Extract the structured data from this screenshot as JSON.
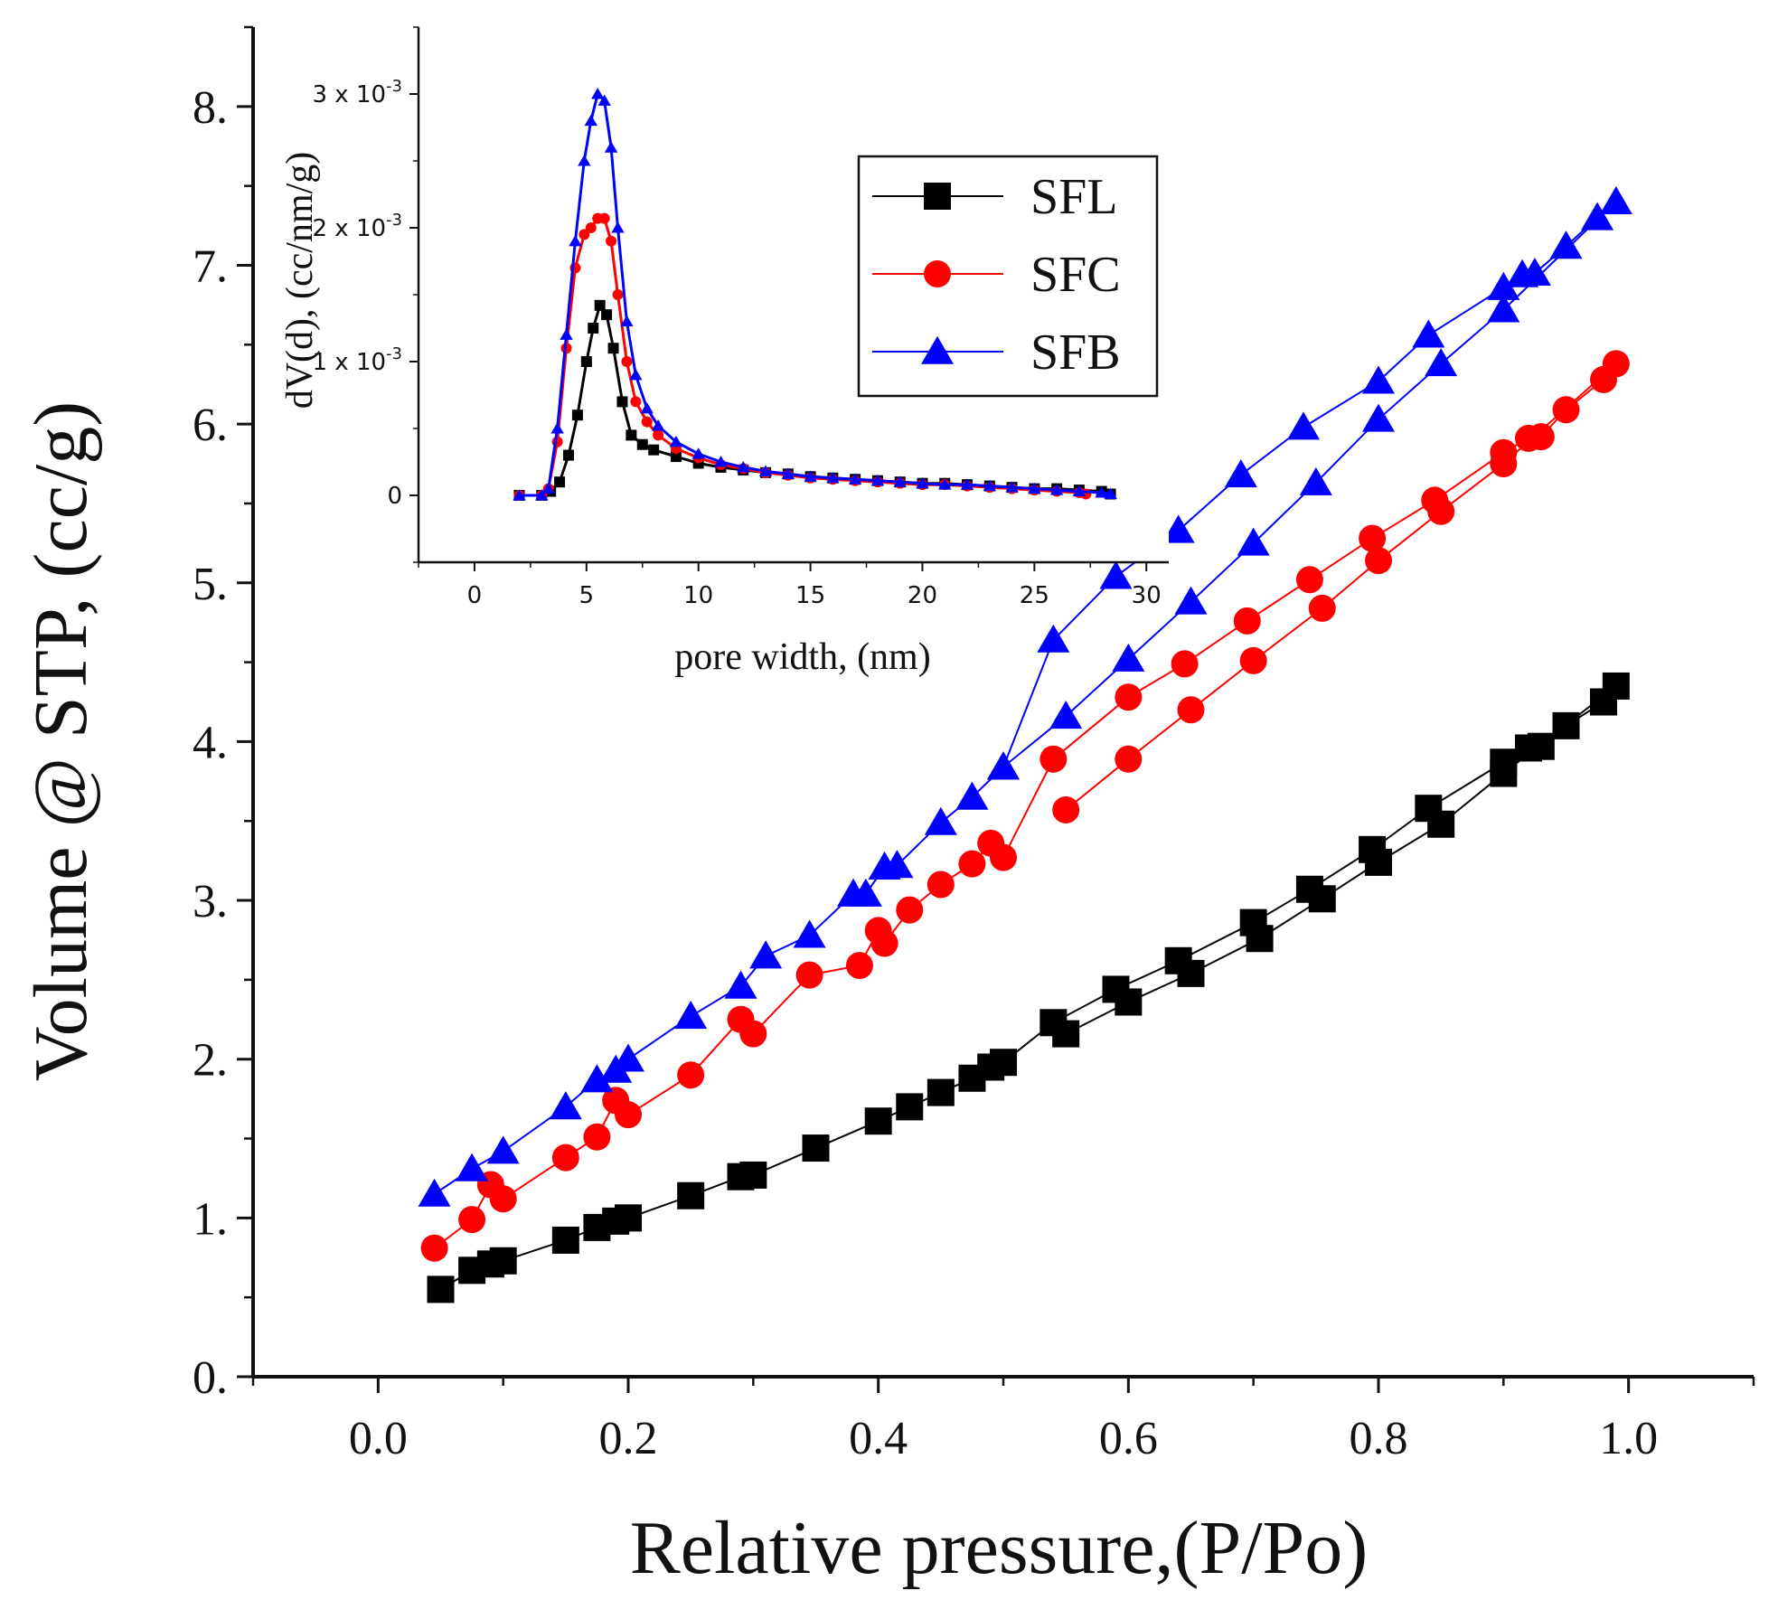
{
  "chart_data": [
    {
      "type": "line",
      "name": "main-isotherm",
      "xlabel": "Relative pressure,(P/Po)",
      "ylabel": "Volume @ STP, (cc/g)",
      "xlim": [
        -0.1,
        1.1
      ],
      "ylim": [
        0,
        8.5
      ],
      "xticks": [
        {
          "v": 0.0,
          "t": "0.0"
        },
        {
          "v": 0.2,
          "t": "0.2"
        },
        {
          "v": 0.4,
          "t": "0.4"
        },
        {
          "v": 0.6,
          "t": "0.6"
        },
        {
          "v": 0.8,
          "t": "0.8"
        },
        {
          "v": 1.0,
          "t": "1.0"
        }
      ],
      "yticks": [
        {
          "v": 0,
          "t": "0."
        },
        {
          "v": 1,
          "t": "1."
        },
        {
          "v": 2,
          "t": "2."
        },
        {
          "v": 3,
          "t": "3."
        },
        {
          "v": 4,
          "t": "4."
        },
        {
          "v": 5,
          "t": "5."
        },
        {
          "v": 6,
          "t": "6."
        },
        {
          "v": 7,
          "t": "7."
        },
        {
          "v": 8,
          "t": "8."
        }
      ],
      "series": [
        {
          "name": "SFL",
          "color": "#000000",
          "marker": "square",
          "points": [
            [
              0.05,
              0.55
            ],
            [
              0.075,
              0.67
            ],
            [
              0.09,
              0.71
            ],
            [
              0.1,
              0.73
            ],
            [
              0.15,
              0.86
            ],
            [
              0.175,
              0.94
            ],
            [
              0.19,
              0.98
            ],
            [
              0.2,
              1.0
            ],
            [
              0.25,
              1.14
            ],
            [
              0.29,
              1.26
            ],
            [
              0.3,
              1.27
            ],
            [
              0.35,
              1.44
            ],
            [
              0.4,
              1.61
            ],
            [
              0.425,
              1.7
            ],
            [
              0.45,
              1.79
            ],
            [
              0.475,
              1.88
            ],
            [
              0.49,
              1.95
            ],
            [
              0.5,
              1.98
            ],
            [
              0.54,
              2.23
            ],
            [
              0.59,
              2.44
            ],
            [
              0.64,
              2.62
            ],
            [
              0.7,
              2.86
            ],
            [
              0.745,
              3.07
            ],
            [
              0.795,
              3.32
            ],
            [
              0.84,
              3.58
            ],
            [
              0.9,
              3.87
            ],
            [
              0.92,
              3.96
            ],
            [
              0.93,
              3.97
            ],
            [
              0.95,
              4.1
            ],
            [
              0.98,
              4.25
            ],
            [
              0.99,
              4.35
            ],
            [
              0.9,
              3.8
            ],
            [
              0.85,
              3.48
            ],
            [
              0.8,
              3.24
            ],
            [
              0.755,
              3.01
            ],
            [
              0.705,
              2.76
            ],
            [
              0.65,
              2.54
            ],
            [
              0.6,
              2.36
            ],
            [
              0.55,
              2.16
            ]
          ]
        },
        {
          "name": "SFC",
          "color": "#ff0000",
          "marker": "circle",
          "points": [
            [
              0.045,
              0.81
            ],
            [
              0.075,
              0.99
            ],
            [
              0.09,
              1.21
            ],
            [
              0.1,
              1.12
            ],
            [
              0.15,
              1.38
            ],
            [
              0.175,
              1.51
            ],
            [
              0.19,
              1.74
            ],
            [
              0.2,
              1.65
            ],
            [
              0.25,
              1.9
            ],
            [
              0.29,
              2.25
            ],
            [
              0.3,
              2.16
            ],
            [
              0.345,
              2.53
            ],
            [
              0.385,
              2.59
            ],
            [
              0.4,
              2.81
            ],
            [
              0.405,
              2.73
            ],
            [
              0.425,
              2.94
            ],
            [
              0.45,
              3.1
            ],
            [
              0.475,
              3.23
            ],
            [
              0.49,
              3.36
            ],
            [
              0.5,
              3.27
            ],
            [
              0.54,
              3.89
            ],
            [
              0.6,
              4.28
            ],
            [
              0.645,
              4.49
            ],
            [
              0.695,
              4.76
            ],
            [
              0.745,
              5.02
            ],
            [
              0.795,
              5.28
            ],
            [
              0.845,
              5.52
            ],
            [
              0.9,
              5.82
            ],
            [
              0.92,
              5.91
            ],
            [
              0.93,
              5.92
            ],
            [
              0.95,
              6.09
            ],
            [
              0.98,
              6.28
            ],
            [
              0.99,
              6.38
            ],
            [
              0.9,
              5.75
            ],
            [
              0.85,
              5.45
            ],
            [
              0.8,
              5.14
            ],
            [
              0.755,
              4.84
            ],
            [
              0.7,
              4.51
            ],
            [
              0.65,
              4.2
            ],
            [
              0.6,
              3.89
            ],
            [
              0.55,
              3.57
            ]
          ]
        },
        {
          "name": "SFB",
          "color": "#0000ff",
          "marker": "triangle",
          "points": [
            [
              0.045,
              1.15
            ],
            [
              0.075,
              1.31
            ],
            [
              0.1,
              1.42
            ],
            [
              0.15,
              1.7
            ],
            [
              0.175,
              1.87
            ],
            [
              0.19,
              1.93
            ],
            [
              0.2,
              2.0
            ],
            [
              0.25,
              2.27
            ],
            [
              0.29,
              2.46
            ],
            [
              0.31,
              2.65
            ],
            [
              0.345,
              2.78
            ],
            [
              0.38,
              3.04
            ],
            [
              0.39,
              3.04
            ],
            [
              0.405,
              3.21
            ],
            [
              0.415,
              3.22
            ],
            [
              0.45,
              3.49
            ],
            [
              0.475,
              3.65
            ],
            [
              0.5,
              3.84
            ],
            [
              0.54,
              4.64
            ],
            [
              0.59,
              5.04
            ],
            [
              0.64,
              5.33
            ],
            [
              0.69,
              5.68
            ],
            [
              0.74,
              5.98
            ],
            [
              0.8,
              6.27
            ],
            [
              0.84,
              6.56
            ],
            [
              0.9,
              6.86
            ],
            [
              0.915,
              6.94
            ],
            [
              0.925,
              6.95
            ],
            [
              0.95,
              7.12
            ],
            [
              0.975,
              7.3
            ],
            [
              0.99,
              7.4
            ],
            [
              0.9,
              6.72
            ],
            [
              0.85,
              6.38
            ],
            [
              0.8,
              6.03
            ],
            [
              0.75,
              5.63
            ],
            [
              0.7,
              5.25
            ],
            [
              0.65,
              4.88
            ],
            [
              0.6,
              4.52
            ],
            [
              0.55,
              4.16
            ],
            [
              0.5,
              3.84
            ]
          ]
        }
      ],
      "legend": {
        "entries": [
          "SFL",
          "SFC",
          "SFB"
        ],
        "placement": "top-right"
      }
    },
    {
      "type": "line",
      "name": "inset-pore-size-distribution",
      "xlabel": "pore width, (nm)",
      "ylabel": "dV(d), (cc/nm/g)",
      "xlim": [
        -2.5,
        31
      ],
      "ylim": [
        -0.0005,
        0.0035
      ],
      "xticks": [
        {
          "v": 0,
          "t": "0"
        },
        {
          "v": 5,
          "t": "5"
        },
        {
          "v": 10,
          "t": "10"
        },
        {
          "v": 15,
          "t": "15"
        },
        {
          "v": 20,
          "t": "20"
        },
        {
          "v": 25,
          "t": "25"
        },
        {
          "v": 30,
          "t": "30"
        }
      ],
      "yticks": [
        {
          "v": 0,
          "base": "0",
          "exp": ""
        },
        {
          "v": 0.001,
          "base": "1 x 10",
          "exp": "-3"
        },
        {
          "v": 0.002,
          "base": "2 x 10",
          "exp": "-3"
        },
        {
          "v": 0.003,
          "base": "3 x 10",
          "exp": "-3"
        }
      ],
      "series": [
        {
          "name": "SFL",
          "color": "#000000",
          "marker": "square",
          "points": [
            [
              2,
              0
            ],
            [
              3,
              0
            ],
            [
              3.4,
              3e-05
            ],
            [
              3.8,
              0.0001
            ],
            [
              4.2,
              0.0003
            ],
            [
              4.6,
              0.0006
            ],
            [
              5,
              0.001
            ],
            [
              5.3,
              0.00125
            ],
            [
              5.6,
              0.00142
            ],
            [
              5.9,
              0.00135
            ],
            [
              6.2,
              0.0011
            ],
            [
              6.6,
              0.0007
            ],
            [
              7,
              0.00045
            ],
            [
              7.5,
              0.00038
            ],
            [
              8,
              0.00034
            ],
            [
              9,
              0.00029
            ],
            [
              10,
              0.00024
            ],
            [
              11,
              0.00021
            ],
            [
              12,
              0.00019
            ],
            [
              13,
              0.00017
            ],
            [
              14,
              0.00016
            ],
            [
              15,
              0.00014
            ],
            [
              16,
              0.00013
            ],
            [
              17,
              0.00012
            ],
            [
              18,
              0.00011
            ],
            [
              19,
              0.0001
            ],
            [
              20,
              9e-05
            ],
            [
              21,
              9e-05
            ],
            [
              22,
              8e-05
            ],
            [
              23,
              7e-05
            ],
            [
              24,
              6e-05
            ],
            [
              25,
              5e-05
            ],
            [
              26,
              5e-05
            ],
            [
              27,
              4e-05
            ],
            [
              28,
              3e-05
            ],
            [
              28.4,
              1e-05
            ]
          ]
        },
        {
          "name": "SFC",
          "color": "#ff0000",
          "marker": "circle",
          "points": [
            [
              2,
              0
            ],
            [
              3,
              0
            ],
            [
              3.3,
              5e-05
            ],
            [
              3.7,
              0.0004
            ],
            [
              4.1,
              0.0011
            ],
            [
              4.5,
              0.0017
            ],
            [
              4.9,
              0.00195
            ],
            [
              5.2,
              0.002
            ],
            [
              5.5,
              0.00207
            ],
            [
              5.8,
              0.00207
            ],
            [
              6.1,
              0.0019
            ],
            [
              6.4,
              0.0015
            ],
            [
              6.8,
              0.001
            ],
            [
              7.2,
              0.0007
            ],
            [
              7.7,
              0.00055
            ],
            [
              8.2,
              0.00045
            ],
            [
              9,
              0.00035
            ],
            [
              10,
              0.00028
            ],
            [
              11,
              0.00023
            ],
            [
              12,
              0.0002
            ],
            [
              13,
              0.00017
            ],
            [
              14,
              0.00015
            ],
            [
              15,
              0.00013
            ],
            [
              16,
              0.00012
            ],
            [
              17,
              0.00011
            ],
            [
              18,
              0.0001
            ],
            [
              19,
              9e-05
            ],
            [
              20,
              8e-05
            ],
            [
              21,
              8e-05
            ],
            [
              22,
              7e-05
            ],
            [
              23,
              6e-05
            ],
            [
              24,
              5e-05
            ],
            [
              25,
              4e-05
            ],
            [
              26,
              3e-05
            ],
            [
              27,
              2e-05
            ],
            [
              27.3,
              1e-05
            ]
          ]
        },
        {
          "name": "SFB",
          "color": "#0000ff",
          "marker": "triangle",
          "points": [
            [
              2,
              0
            ],
            [
              3,
              0
            ],
            [
              3.3,
              5e-05
            ],
            [
              3.7,
              0.0005
            ],
            [
              4.1,
              0.0012
            ],
            [
              4.5,
              0.0019
            ],
            [
              4.9,
              0.0025
            ],
            [
              5.2,
              0.0028
            ],
            [
              5.5,
              0.003
            ],
            [
              5.8,
              0.00295
            ],
            [
              6.1,
              0.0026
            ],
            [
              6.4,
              0.002
            ],
            [
              6.8,
              0.0013
            ],
            [
              7.2,
              0.0009
            ],
            [
              7.7,
              0.00065
            ],
            [
              8.2,
              0.00052
            ],
            [
              9,
              0.0004
            ],
            [
              10,
              0.00031
            ],
            [
              11,
              0.00025
            ],
            [
              12,
              0.00021
            ],
            [
              13,
              0.00018
            ],
            [
              14,
              0.00016
            ],
            [
              15,
              0.00014
            ],
            [
              16,
              0.00013
            ],
            [
              17,
              0.00012
            ],
            [
              18,
              0.00011
            ],
            [
              19,
              0.0001
            ],
            [
              20,
              9e-05
            ],
            [
              21,
              8e-05
            ],
            [
              22,
              8e-05
            ],
            [
              23,
              7e-05
            ],
            [
              24,
              6e-05
            ],
            [
              25,
              5e-05
            ],
            [
              26,
              4e-05
            ],
            [
              27,
              3e-05
            ],
            [
              28,
              2e-05
            ],
            [
              28.4,
              1e-05
            ]
          ]
        }
      ]
    }
  ]
}
